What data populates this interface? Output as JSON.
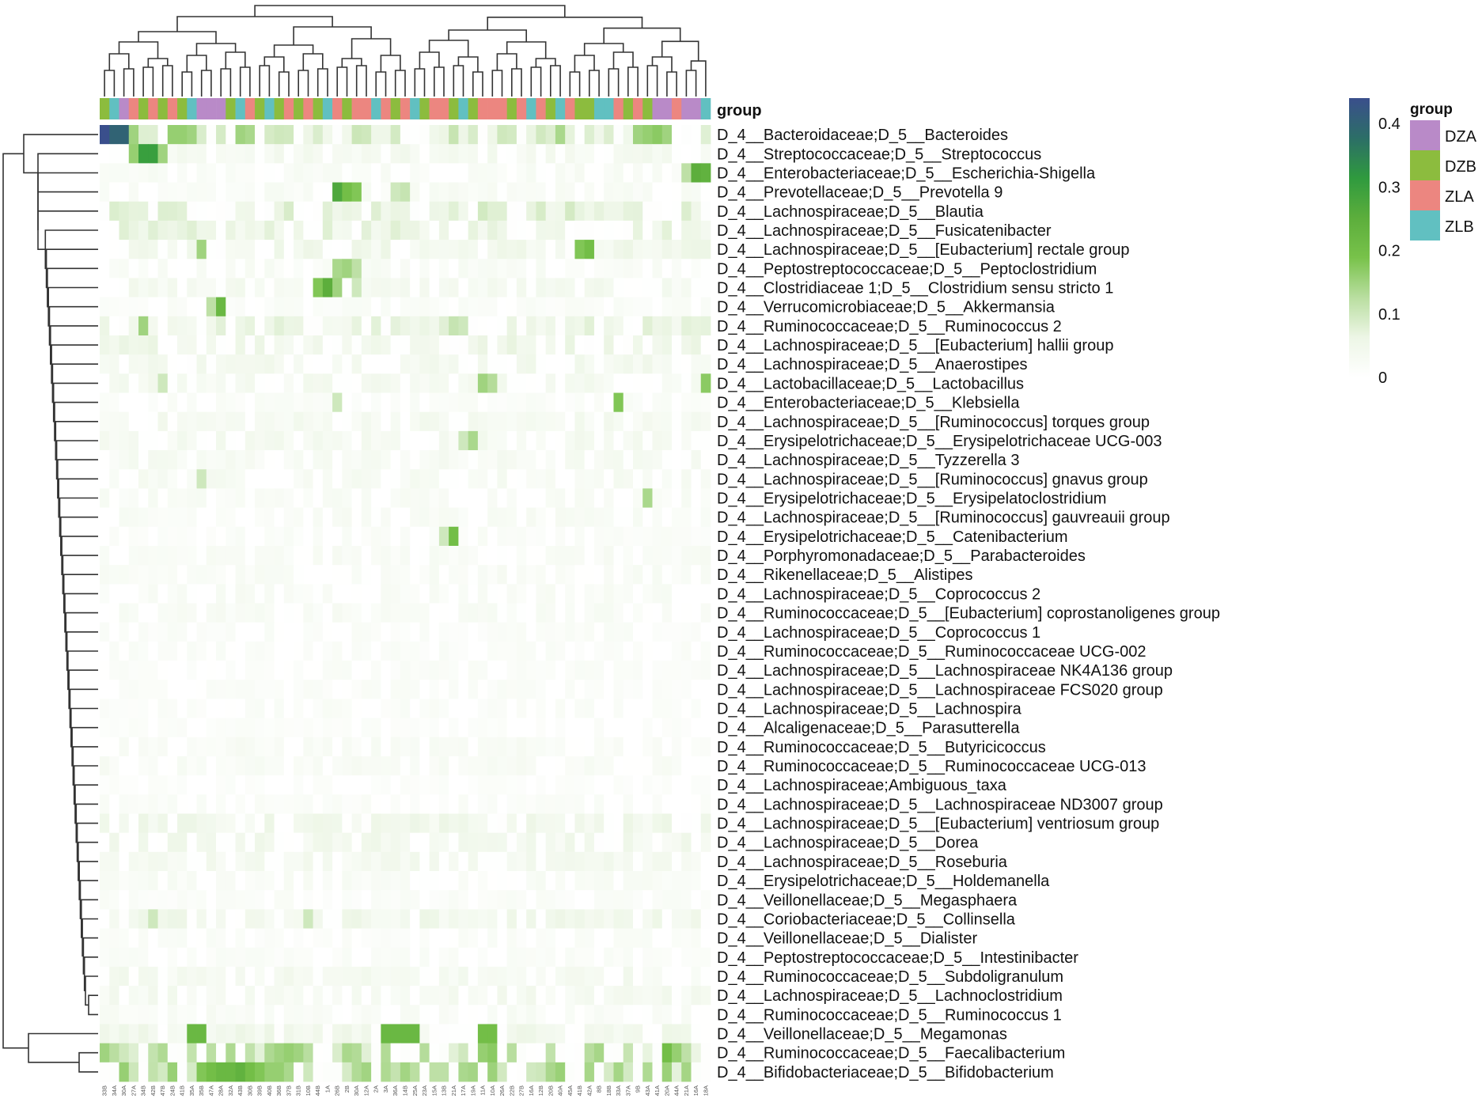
{
  "colors": {
    "scale": [
      "#ffffff",
      "#edf6e6",
      "#b9dea0",
      "#78c24a",
      "#5cae3c",
      "#2f9a3e",
      "#2c6e67",
      "#3a4f8c"
    ],
    "group_colors": {
      "DZA": "#b98ac8",
      "DZB": "#8cbc3e",
      "ZLA": "#ec8680",
      "ZLB": "#61c0c1"
    },
    "dendrogram": "#333333",
    "text": "#111111",
    "xlabel_text": "#555555"
  },
  "chart_data": {
    "type": "heatmap",
    "title": "",
    "annotation_label": "group",
    "legend_title": "group",
    "colorbar_ticks": [
      "0.4",
      "0.3",
      "0.2",
      "0.1",
      "0"
    ],
    "value_range": [
      0,
      0.44
    ],
    "groups": [
      "DZA",
      "DZB",
      "ZLA",
      "ZLB"
    ],
    "samples": [
      "33B",
      "34A",
      "30A",
      "27A",
      "34B",
      "42B",
      "47B",
      "24B",
      "41B",
      "35A",
      "35B",
      "47A",
      "28A",
      "32A",
      "43B",
      "30B",
      "39B",
      "40B",
      "36B",
      "37B",
      "31B",
      "10B",
      "44B",
      "1A",
      "26B",
      "2B",
      "30A",
      "12A",
      "2A",
      "3A",
      "36A",
      "14B",
      "25A",
      "23A",
      "15A",
      "13B",
      "21A",
      "17A",
      "19A",
      "11A",
      "10A",
      "26A",
      "22B",
      "27B",
      "16A",
      "12B",
      "20B",
      "40A",
      "45A",
      "41B",
      "42A",
      "8B",
      "18B",
      "33A",
      "37A",
      "9B",
      "43A",
      "41A",
      "20A",
      "44A",
      "21A",
      "16A",
      "18A"
    ],
    "sample_groups": [
      "DZB",
      "ZLB",
      "DZA",
      "ZLA",
      "DZB",
      "ZLA",
      "DZB",
      "ZLA",
      "DZB",
      "ZLB",
      "DZA",
      "DZA",
      "DZA",
      "DZB",
      "ZLB",
      "ZLA",
      "DZB",
      "ZLB",
      "DZB",
      "ZLA",
      "DZB",
      "ZLA",
      "DZB",
      "ZLB",
      "ZLA",
      "DZB",
      "ZLA",
      "ZLA",
      "ZLB",
      "ZLA",
      "DZB",
      "ZLA",
      "ZLB",
      "DZB",
      "ZLA",
      "ZLA",
      "DZB",
      "ZLB",
      "DZB",
      "ZLA",
      "ZLA",
      "ZLA",
      "DZB",
      "ZLA",
      "ZLB",
      "ZLA",
      "DZB",
      "ZLB",
      "ZLA",
      "DZB",
      "DZB",
      "ZLB",
      "ZLB",
      "ZLA",
      "DZB",
      "ZLA",
      "DZB",
      "DZA",
      "DZA",
      "ZLA",
      "DZA",
      "DZA",
      "ZLB"
    ],
    "taxa": [
      "D_4__Bacteroidaceae;D_5__Bacteroides",
      "D_4__Streptococcaceae;D_5__Streptococcus",
      "D_4__Enterobacteriaceae;D_5__Escherichia-Shigella",
      "D_4__Prevotellaceae;D_5__Prevotella 9",
      "D_4__Lachnospiraceae;D_5__Blautia",
      "D_4__Lachnospiraceae;D_5__Fusicatenibacter",
      "D_4__Lachnospiraceae;D_5__[Eubacterium] rectale group",
      "D_4__Peptostreptococcaceae;D_5__Peptoclostridium",
      "D_4__Clostridiaceae 1;D_5__Clostridium sensu stricto 1",
      "D_4__Verrucomicrobiaceae;D_5__Akkermansia",
      "D_4__Ruminococcaceae;D_5__Ruminococcus 2",
      "D_4__Lachnospiraceae;D_5__[Eubacterium] hallii group",
      "D_4__Lachnospiraceae;D_5__Anaerostipes",
      "D_4__Lactobacillaceae;D_5__Lactobacillus",
      "D_4__Enterobacteriaceae;D_5__Klebsiella",
      "D_4__Lachnospiraceae;D_5__[Ruminococcus] torques group",
      "D_4__Erysipelotrichaceae;D_5__Erysipelotrichaceae UCG-003",
      "D_4__Lachnospiraceae;D_5__Tyzzerella 3",
      "D_4__Lachnospiraceae;D_5__[Ruminococcus] gnavus group",
      "D_4__Erysipelotrichaceae;D_5__Erysipelatoclostridium",
      "D_4__Lachnospiraceae;D_5__[Ruminococcus] gauvreauii group",
      "D_4__Erysipelotrichaceae;D_5__Catenibacterium",
      "D_4__Porphyromonadaceae;D_5__Parabacteroides",
      "D_4__Rikenellaceae;D_5__Alistipes",
      "D_4__Lachnospiraceae;D_5__Coprococcus 2",
      "D_4__Ruminococcaceae;D_5__[Eubacterium] coprostanoligenes group",
      "D_4__Lachnospiraceae;D_5__Coprococcus 1",
      "D_4__Ruminococcaceae;D_5__Ruminococcaceae UCG-002",
      "D_4__Lachnospiraceae;D_5__Lachnospiraceae NK4A136 group",
      "D_4__Lachnospiraceae;D_5__Lachnospiraceae FCS020 group",
      "D_4__Lachnospiraceae;D_5__Lachnospira",
      "D_4__Alcaligenaceae;D_5__Parasutterella",
      "D_4__Ruminococcaceae;D_5__Butyricicoccus",
      "D_4__Ruminococcaceae;D_5__Ruminococcaceae UCG-013",
      "D_4__Lachnospiraceae;Ambiguous_taxa",
      "D_4__Lachnospiraceae;D_5__Lachnospiraceae ND3007 group",
      "D_4__Lachnospiraceae;D_5__[Eubacterium] ventriosum group",
      "D_4__Lachnospiraceae;D_5__Dorea",
      "D_4__Lachnospiraceae;D_5__Roseburia",
      "D_4__Erysipelotrichaceae;D_5__Holdemanella",
      "D_4__Veillonellaceae;D_5__Megasphaera",
      "D_4__Coriobacteriaceae;D_5__Collinsella",
      "D_4__Veillonellaceae;D_5__Dialister",
      "D_4__Peptostreptococcaceae;D_5__Intestinibacter",
      "D_4__Ruminococcaceae;D_5__Subdoligranulum",
      "D_4__Lachnospiraceae;D_5__Lachnoclostridium",
      "D_4__Ruminococcaceae;D_5__Ruminococcus 1",
      "D_4__Veillonellaceae;D_5__Megamonas",
      "D_4__Ruminococcaceae;D_5__Faecalibacterium",
      "D_4__Bifidobacteriaceae;D_5__Bifidobacterium"
    ],
    "row_means": [
      0.07,
      0.03,
      0.02,
      0.02,
      0.06,
      0.05,
      0.04,
      0.02,
      0.03,
      0.015,
      0.05,
      0.045,
      0.035,
      0.03,
      0.015,
      0.03,
      0.03,
      0.025,
      0.025,
      0.02,
      0.02,
      0.015,
      0.02,
      0.02,
      0.02,
      0.02,
      0.015,
      0.015,
      0.015,
      0.015,
      0.015,
      0.012,
      0.02,
      0.02,
      0.01,
      0.015,
      0.04,
      0.035,
      0.03,
      0.02,
      0.015,
      0.04,
      0.015,
      0.015,
      0.03,
      0.03,
      0.02,
      0.04,
      0.09,
      0.1
    ],
    "hotspots": [
      [
        0,
        0,
        0.44
      ],
      [
        0,
        1,
        0.4
      ],
      [
        0,
        2,
        0.4
      ],
      [
        0,
        3,
        0.15
      ],
      [
        0,
        7,
        0.16
      ],
      [
        0,
        8,
        0.16
      ],
      [
        0,
        9,
        0.15
      ],
      [
        0,
        14,
        0.15
      ],
      [
        0,
        15,
        0.14
      ],
      [
        0,
        47,
        0.14
      ],
      [
        0,
        55,
        0.15
      ],
      [
        0,
        56,
        0.16
      ],
      [
        0,
        57,
        0.17
      ],
      [
        0,
        58,
        0.15
      ],
      [
        1,
        4,
        0.3
      ],
      [
        1,
        5,
        0.3
      ],
      [
        1,
        3,
        0.16
      ],
      [
        1,
        6,
        0.15
      ],
      [
        2,
        61,
        0.25
      ],
      [
        2,
        62,
        0.24
      ],
      [
        2,
        60,
        0.12
      ],
      [
        3,
        24,
        0.27
      ],
      [
        3,
        25,
        0.2
      ],
      [
        3,
        26,
        0.18
      ],
      [
        3,
        30,
        0.1
      ],
      [
        3,
        31,
        0.11
      ],
      [
        6,
        49,
        0.18
      ],
      [
        6,
        50,
        0.2
      ],
      [
        6,
        10,
        0.15
      ],
      [
        7,
        24,
        0.14
      ],
      [
        7,
        25,
        0.15
      ],
      [
        7,
        26,
        0.12
      ],
      [
        8,
        23,
        0.25
      ],
      [
        8,
        22,
        0.18
      ],
      [
        8,
        24,
        0.15
      ],
      [
        8,
        26,
        0.1
      ],
      [
        9,
        12,
        0.22
      ],
      [
        9,
        11,
        0.12
      ],
      [
        10,
        4,
        0.15
      ],
      [
        10,
        36,
        0.11
      ],
      [
        10,
        37,
        0.1
      ],
      [
        13,
        39,
        0.15
      ],
      [
        13,
        40,
        0.13
      ],
      [
        13,
        62,
        0.17
      ],
      [
        13,
        6,
        0.1
      ],
      [
        14,
        53,
        0.18
      ],
      [
        14,
        24,
        0.1
      ],
      [
        16,
        38,
        0.14
      ],
      [
        16,
        37,
        0.1
      ],
      [
        18,
        10,
        0.1
      ],
      [
        19,
        56,
        0.14
      ],
      [
        21,
        36,
        0.2
      ],
      [
        21,
        35,
        0.1
      ],
      [
        41,
        5,
        0.1
      ],
      [
        41,
        21,
        0.1
      ],
      [
        47,
        9,
        0.22
      ],
      [
        47,
        10,
        0.22
      ],
      [
        47,
        29,
        0.22
      ],
      [
        47,
        30,
        0.22
      ],
      [
        47,
        31,
        0.22
      ],
      [
        47,
        32,
        0.22
      ],
      [
        47,
        39,
        0.2
      ],
      [
        47,
        40,
        0.2
      ],
      [
        48,
        0,
        0.15
      ],
      [
        48,
        18,
        0.15
      ],
      [
        48,
        19,
        0.16
      ],
      [
        48,
        20,
        0.15
      ],
      [
        48,
        25,
        0.14
      ],
      [
        48,
        39,
        0.16
      ],
      [
        48,
        40,
        0.17
      ],
      [
        48,
        58,
        0.2
      ],
      [
        48,
        59,
        0.16
      ],
      [
        49,
        10,
        0.18
      ],
      [
        49,
        11,
        0.2
      ],
      [
        49,
        12,
        0.22
      ],
      [
        49,
        13,
        0.22
      ],
      [
        49,
        14,
        0.24
      ],
      [
        49,
        15,
        0.2
      ],
      [
        49,
        16,
        0.18
      ],
      [
        49,
        17,
        0.16
      ],
      [
        49,
        18,
        0.16
      ],
      [
        49,
        19,
        0.14
      ]
    ]
  }
}
